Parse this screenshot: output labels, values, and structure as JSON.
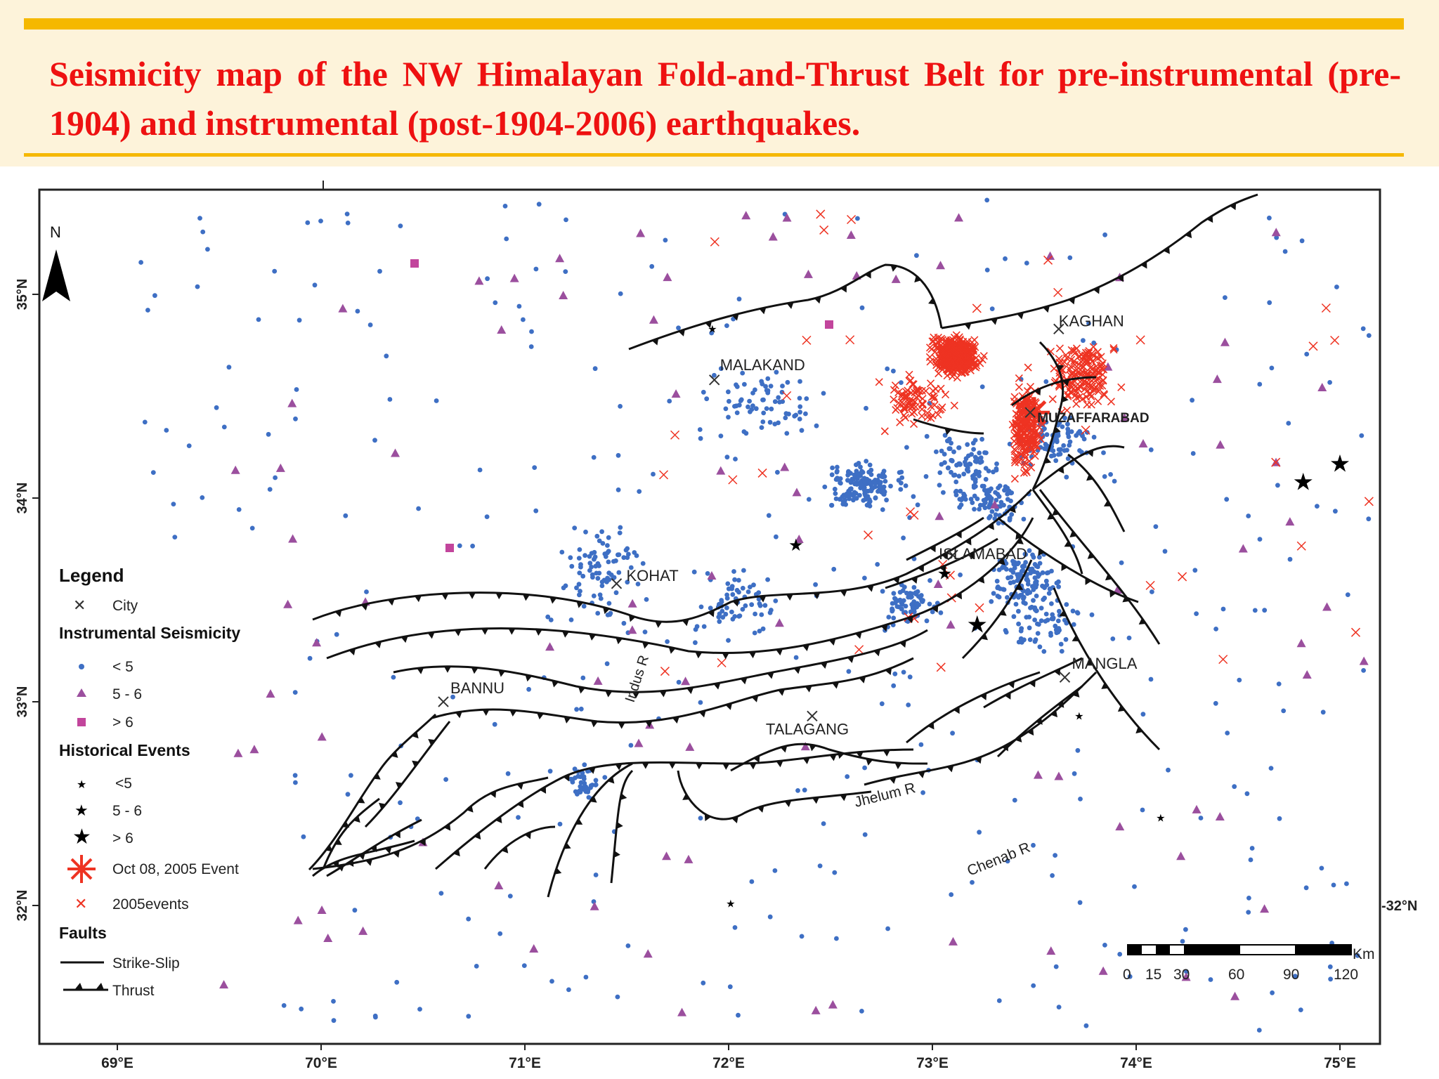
{
  "slide": {
    "title": "Seismicity map of the NW Himalayan Fold-and-Thrust Belt for pre-instrumental (pre-1904) and instrumental (post-1904-2006) earthquakes."
  },
  "colors": {
    "title": "#ee1111",
    "rule": "#f5b800",
    "band": "#fdf3da",
    "small_event": "#3e6fc4",
    "moderate_event": "#9b4f9e",
    "event_2005": "#ee3322",
    "fault": "#111111"
  },
  "map": {
    "north_label": "N",
    "lon_labels": [
      "69°E",
      "70°E",
      "71°E",
      "72°E",
      "73°E",
      "74°E",
      "75°E"
    ],
    "lat_labels": [
      "35°N",
      "34°N",
      "33°N",
      "32°N"
    ],
    "right_lat_label": "-32°N",
    "cities": [
      {
        "name": "MALAKAND",
        "lon": 71.93,
        "lat": 34.58
      },
      {
        "name": "KAGHAN",
        "lon": 73.62,
        "lat": 34.83
      },
      {
        "name": "MUZAFFARABAD",
        "lon": 73.48,
        "lat": 34.42
      },
      {
        "name": "ISLAMABAD",
        "lon": 73.1,
        "lat": 33.72
      },
      {
        "name": "KOHAT",
        "lon": 71.45,
        "lat": 33.58
      },
      {
        "name": "BANNU",
        "lon": 70.6,
        "lat": 33.0
      },
      {
        "name": "TALAGANG",
        "lon": 72.41,
        "lat": 32.93
      },
      {
        "name": "MANGLA",
        "lon": 73.65,
        "lat": 33.12
      }
    ],
    "rivers": [
      {
        "name": "Indus R",
        "lon": 71.55,
        "lat": 33.15
      },
      {
        "name": "Jhelum R",
        "lon": 72.85,
        "lat": 32.45
      },
      {
        "name": "Chenab R",
        "lon": 73.4,
        "lat": 32.15
      }
    ],
    "historical_events": [
      {
        "size": ">6",
        "lon": 73.22,
        "lat": 33.38
      },
      {
        "size": ">6",
        "lon": 75.0,
        "lat": 34.17
      },
      {
        "size": ">6",
        "lon": 74.82,
        "lat": 34.08
      },
      {
        "size": "5-6",
        "lon": 73.06,
        "lat": 33.63
      },
      {
        "size": "5-6",
        "lon": 72.33,
        "lat": 33.77
      },
      {
        "size": "<5",
        "lon": 72.01,
        "lat": 32.01
      },
      {
        "size": "<5",
        "lon": 74.12,
        "lat": 32.43
      },
      {
        "size": "<5",
        "lon": 73.72,
        "lat": 32.93
      },
      {
        "size": "<5",
        "lon": 71.92,
        "lat": 34.83
      }
    ],
    "event_2005": {
      "name": "Oct 08, 2005 Event",
      "lon": 73.5,
      "lat": 34.42
    },
    "scale_bar": {
      "unit": "Km",
      "ticks": [
        "0",
        "15",
        "30",
        "60",
        "90",
        "120"
      ]
    }
  },
  "legend": {
    "title": "Legend",
    "city": "City",
    "instrumental_header": "Instrumental Seismicity",
    "instrumental": [
      "< 5",
      "5 - 6",
      "> 6"
    ],
    "historical_header": "Historical Events",
    "historical": [
      "<5",
      "5 - 6",
      "> 6"
    ],
    "oct_event": "Oct 08, 2005 Event",
    "events_2005": "2005events",
    "faults_header": "Faults",
    "strike_slip": "Strike-Slip",
    "thrust": "Thrust"
  }
}
